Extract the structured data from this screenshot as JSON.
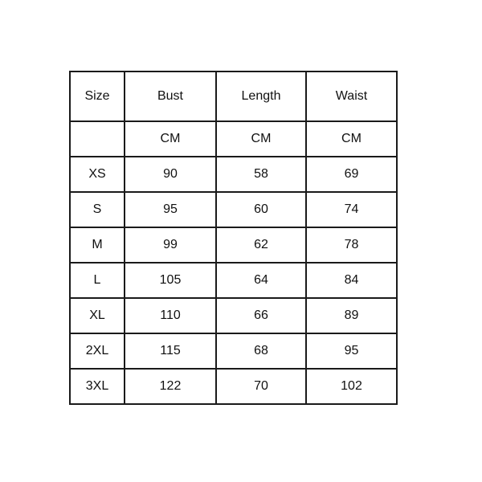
{
  "size_chart": {
    "headers": [
      "Size",
      "Bust",
      "Length",
      "Waist"
    ],
    "units": [
      "",
      "CM",
      "CM",
      "CM"
    ],
    "rows": [
      [
        "XS",
        "90",
        "58",
        "69"
      ],
      [
        "S",
        "95",
        "60",
        "74"
      ],
      [
        "M",
        "99",
        "62",
        "78"
      ],
      [
        "L",
        "105",
        "64",
        "84"
      ],
      [
        "XL",
        "110",
        "66",
        "89"
      ],
      [
        "2XL",
        "115",
        "68",
        "95"
      ],
      [
        "3XL",
        "122",
        "70",
        "102"
      ]
    ]
  }
}
